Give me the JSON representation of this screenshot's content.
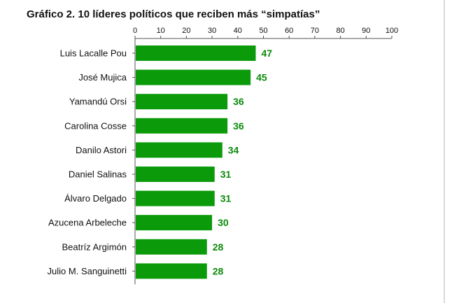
{
  "chart_data": {
    "type": "bar",
    "orientation": "horizontal",
    "title": "Gráfico 2. 10 líderes políticos que reciben más “simpatías”",
    "xlim": [
      0,
      100
    ],
    "xticks": [
      0,
      10,
      20,
      30,
      40,
      50,
      60,
      70,
      80,
      90,
      100
    ],
    "x_axis_position": "top",
    "grid": false,
    "categories": [
      "Luis Lacalle Pou",
      "José Mujica",
      "Yamandú Orsi",
      "Carolina Cosse",
      "Danilo Astori",
      "Daniel Salinas",
      "Álvaro Delgado",
      "Azucena Arbeleche",
      "Beatríz Argimón",
      "Julio M. Sanguinetti"
    ],
    "values": [
      47,
      45,
      36,
      36,
      34,
      31,
      31,
      30,
      28,
      28
    ],
    "bar_color": "#0a9a0a",
    "label_color": "#0a8a0a"
  }
}
